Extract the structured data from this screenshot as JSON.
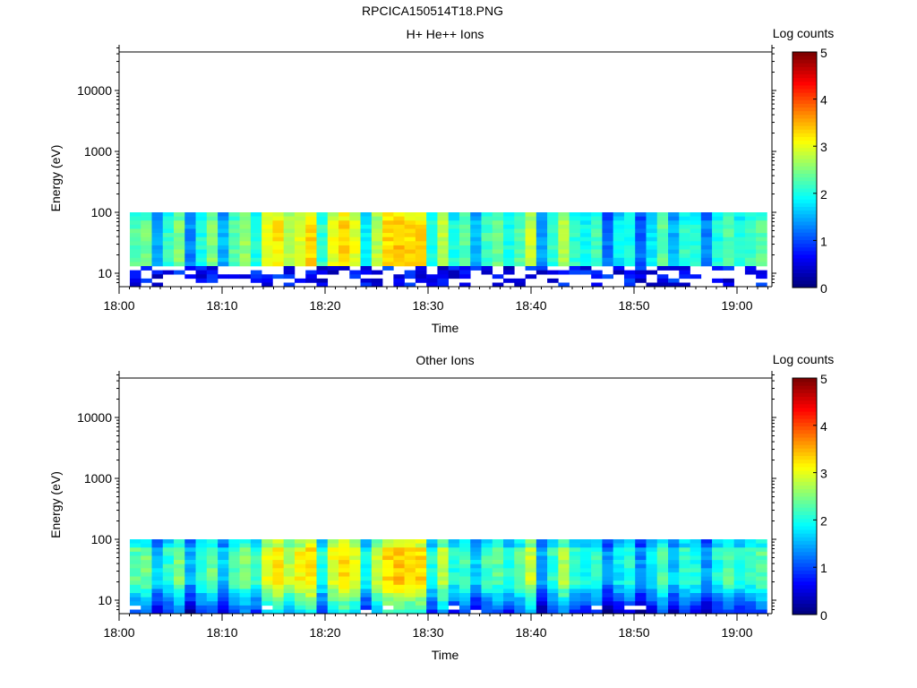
{
  "title": "RPCICA150514T18.PNG",
  "chart_data": [
    {
      "type": "heatmap",
      "title": "H+ He++ Ions",
      "xlabel": "Time",
      "ylabel": "Energy (eV)",
      "yscale": "log",
      "ylim": [
        6,
        50000
      ],
      "xlim": [
        "18:00",
        "19:03"
      ],
      "x_ticks": [
        "18:00",
        "18:10",
        "18:20",
        "18:30",
        "18:40",
        "18:50",
        "19:00"
      ],
      "y_ticks": [
        "10",
        "100",
        "1000",
        "10000"
      ],
      "colorbar": {
        "label": "Log counts",
        "range": [
          0,
          5
        ],
        "ticks": [
          "0",
          "1",
          "2",
          "3",
          "4",
          "5"
        ],
        "colormap": "jet"
      },
      "time_start": "18:01",
      "bin_seconds": 64,
      "energy_range_eV": [
        6,
        100
      ],
      "sparse_below_eV": 12.5,
      "column_log_counts": [
        2.3,
        2.4,
        1.4,
        2.1,
        2.5,
        1.3,
        2.0,
        2.5,
        1.5,
        2.3,
        2.6,
        2.0,
        3.0,
        3.2,
        2.8,
        3.0,
        3.3,
        2.1,
        3.0,
        3.3,
        3.0,
        1.8,
        2.8,
        3.3,
        3.4,
        3.3,
        3.3,
        2.0,
        2.8,
        2.0,
        2.3,
        1.5,
        2.2,
        2.4,
        2.0,
        2.3,
        2.9,
        1.4,
        2.1,
        2.7,
        2.1,
        1.9,
        2.2,
        1.2,
        1.8,
        2.0,
        1.1,
        1.8,
        2.3,
        1.5,
        2.1,
        2.0,
        1.3,
        2.0,
        2.3,
        2.0,
        2.2,
        2.3
      ]
    },
    {
      "type": "heatmap",
      "title": "Other Ions",
      "xlabel": "Time",
      "ylabel": "Energy (eV)",
      "yscale": "log",
      "ylim": [
        6,
        50000
      ],
      "xlim": [
        "18:00",
        "19:03"
      ],
      "x_ticks": [
        "18:00",
        "18:10",
        "18:20",
        "18:30",
        "18:40",
        "18:50",
        "19:00"
      ],
      "y_ticks": [
        "10",
        "100",
        "1000",
        "10000"
      ],
      "colorbar": {
        "label": "Log counts",
        "range": [
          0,
          5
        ],
        "ticks": [
          "0",
          "1",
          "2",
          "3",
          "4",
          "5"
        ],
        "colormap": "jet"
      },
      "time_start": "18:01",
      "bin_seconds": 64,
      "energy_range_eV": [
        6,
        100
      ],
      "sparse_below_eV": 0,
      "column_log_counts": [
        2.3,
        2.4,
        1.6,
        2.1,
        2.5,
        1.5,
        2.1,
        2.4,
        1.6,
        2.2,
        2.5,
        2.1,
        3.0,
        3.2,
        2.8,
        3.1,
        3.3,
        2.0,
        3.0,
        3.3,
        3.0,
        1.9,
        2.8,
        3.3,
        3.4,
        3.3,
        3.3,
        2.0,
        2.8,
        2.0,
        2.2,
        1.6,
        2.2,
        2.3,
        2.0,
        2.3,
        2.9,
        1.5,
        2.1,
        2.7,
        2.1,
        1.9,
        2.1,
        1.3,
        1.8,
        2.0,
        1.3,
        1.8,
        2.3,
        1.6,
        2.1,
        2.0,
        1.4,
        2.0,
        2.3,
        2.0,
        2.1,
        2.3
      ]
    }
  ]
}
